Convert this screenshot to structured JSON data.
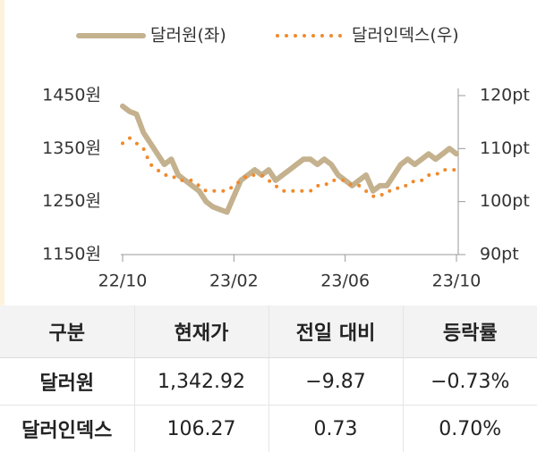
{
  "chart_data": {
    "type": "line",
    "legend_position": "top",
    "categories": [
      "22/10",
      null,
      null,
      null,
      null,
      null,
      null,
      null,
      null,
      null,
      null,
      null,
      null,
      null,
      null,
      null,
      "23/02",
      null,
      null,
      null,
      null,
      null,
      null,
      null,
      null,
      null,
      null,
      null,
      null,
      null,
      null,
      null,
      "23/06",
      null,
      null,
      null,
      null,
      null,
      null,
      null,
      null,
      null,
      null,
      null,
      null,
      null,
      null,
      null,
      "23/10"
    ],
    "series": [
      {
        "name": "달러원(좌)",
        "color": "#c4b18e",
        "style": "solid",
        "values": [
          1430,
          1420,
          1415,
          1380,
          1360,
          1340,
          1320,
          1330,
          1300,
          1290,
          1280,
          1270,
          1250,
          1240,
          1235,
          1230,
          1260,
          1290,
          1300,
          1310,
          1300,
          1310,
          1290,
          1300,
          1310,
          1320,
          1330,
          1330,
          1320,
          1330,
          1320,
          1300,
          1290,
          1280,
          1290,
          1300,
          1270,
          1280,
          1280,
          1300,
          1320,
          1330,
          1320,
          1330,
          1340,
          1330,
          1340,
          1350,
          1340
        ]
      },
      {
        "name": "달러인덱스(우)",
        "color": "#f08a2c",
        "style": "dotted",
        "axis": "y2",
        "values": [
          111,
          112,
          111,
          110,
          107,
          106,
          105,
          105,
          104,
          104,
          104,
          103,
          102,
          102,
          102,
          102,
          103,
          104,
          105,
          105,
          105,
          104,
          103,
          102,
          102,
          102,
          102,
          102,
          103,
          103,
          104,
          104,
          104,
          103,
          103,
          102,
          101,
          101,
          102,
          102,
          103,
          103,
          104,
          104,
          105,
          105,
          106,
          106,
          106
        ]
      }
    ],
    "ylim": [
      1150,
      1450
    ],
    "yticks": [
      {
        "value": 1150,
        "label": "1150원"
      },
      {
        "value": 1250,
        "label": "1250원"
      },
      {
        "value": 1350,
        "label": "1350원"
      },
      {
        "value": 1450,
        "label": "1450원"
      }
    ],
    "y2lim": [
      90,
      120
    ],
    "y2ticks": [
      {
        "value": 90,
        "label": "90pt"
      },
      {
        "value": 100,
        "label": "100pt"
      },
      {
        "value": 110,
        "label": "110pt"
      },
      {
        "value": 120,
        "label": "120pt"
      }
    ]
  },
  "table": {
    "header": [
      "구분",
      "현재가",
      "전일 대비",
      "등락률"
    ],
    "rows": [
      [
        "달러원",
        "1,342.92",
        "−9.87",
        "−0.73%"
      ],
      [
        "달러인덱스",
        "106.27",
        "0.73",
        "0.70%"
      ]
    ]
  }
}
